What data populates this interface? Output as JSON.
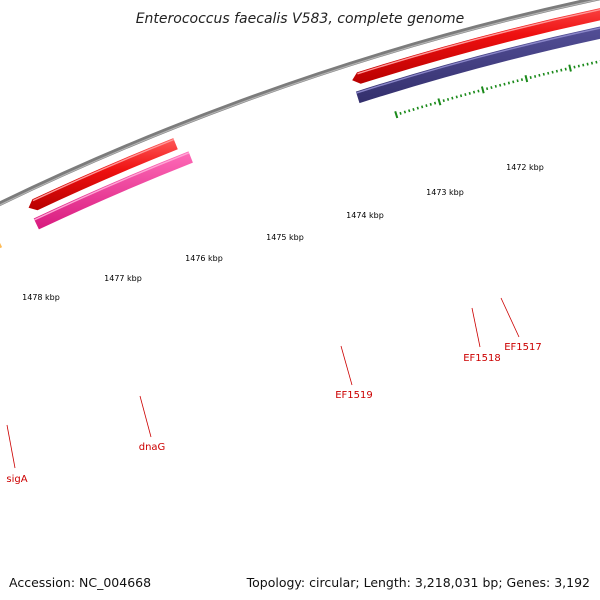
{
  "title": "Enterococcus faecalis V583, complete genome",
  "scale": {
    "unit": "kbp",
    "labels": [
      "1472 kbp",
      "1473 kbp",
      "1474 kbp",
      "1475 kbp",
      "1476 kbp",
      "1477 kbp",
      "1478 kbp"
    ]
  },
  "genes": [
    {
      "name": "sigA",
      "strand": "forward",
      "color": "#e81c1c",
      "cog_color": "#f0941c"
    },
    {
      "name": "dnaG",
      "strand": "forward",
      "color": "#e81c1c",
      "cog_color": "#e8268c"
    },
    {
      "name": "EF1519",
      "strand": "reverse",
      "color": "#e81c1c",
      "cog_color": "#3e3a7e"
    },
    {
      "name": "EF1518",
      "strand": "reverse",
      "color": "#e81c1c",
      "cog_color": "#6e8c1e"
    },
    {
      "name": "EF1517",
      "strand": "reverse",
      "color": "#e81c1c",
      "cog_color": ""
    },
    {
      "name": "",
      "strand": "reverse",
      "color": "#e81c1c",
      "cog_color": "#18c8c8"
    }
  ],
  "colors": {
    "backbone": "#7c7c7c",
    "ticks": "#1a8a1a",
    "gene_label": "#cc0000"
  },
  "footer": {
    "accession": "Accession: NC_004668",
    "stats": "Topology: circular; Length: 3,218,031 bp; Genes: 3,192"
  }
}
